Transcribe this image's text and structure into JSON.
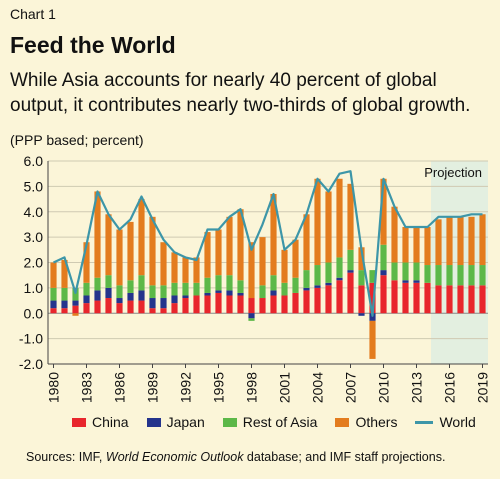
{
  "header": {
    "chart_label": "Chart 1",
    "title": "Feed the World",
    "subtitle": "While Asia accounts for nearly 40 percent of global output, it contributes nearly two-thirds of global growth.",
    "unit_note": "(PPP based; percent)"
  },
  "source": {
    "prefix": "Sources: IMF, ",
    "italic": "World Economic Outlook",
    "suffix": " database; and IMF staff projections."
  },
  "colors": {
    "China": "#e8262c",
    "Japan": "#24348c",
    "Rest of Asia": "#5cb848",
    "Others": "#e37c1e",
    "World": "#3d96a8",
    "projection_band": "#e3efe0"
  },
  "chart_data": {
    "type": "bar",
    "stacked": true,
    "categories": [
      1980,
      1981,
      1982,
      1983,
      1984,
      1985,
      1986,
      1987,
      1988,
      1989,
      1990,
      1991,
      1992,
      1993,
      1994,
      1995,
      1996,
      1997,
      1998,
      1999,
      2000,
      2001,
      2002,
      2003,
      2004,
      2005,
      2006,
      2007,
      2008,
      2009,
      2010,
      2011,
      2012,
      2013,
      2014,
      2015,
      2016,
      2017,
      2018,
      2019
    ],
    "tick_labels": [
      "1980",
      "1983",
      "1986",
      "1989",
      "1992",
      "1995",
      "1998",
      "2001",
      "2004",
      "2007",
      "2010",
      "2013",
      "2016",
      "2019"
    ],
    "ylim": [
      -2.0,
      6.0
    ],
    "yticks": [
      "-2.0",
      "-1.0",
      "0.0",
      "1.0",
      "2.0",
      "3.0",
      "4.0",
      "5.0",
      "6.0"
    ],
    "grid": true,
    "projection_label": "Projection",
    "projection_start": 2015,
    "series": [
      {
        "name": "China",
        "values": [
          0.2,
          0.2,
          0.3,
          0.4,
          0.5,
          0.6,
          0.4,
          0.5,
          0.5,
          0.2,
          0.2,
          0.4,
          0.6,
          0.7,
          0.7,
          0.8,
          0.7,
          0.7,
          0.6,
          0.6,
          0.7,
          0.7,
          0.8,
          0.9,
          1.0,
          1.1,
          1.3,
          1.6,
          1.1,
          1.2,
          1.5,
          1.3,
          1.2,
          1.2,
          1.2,
          1.1,
          1.1,
          1.1,
          1.1,
          1.1
        ]
      },
      {
        "name": "Japan",
        "values": [
          0.3,
          0.3,
          0.2,
          0.3,
          0.4,
          0.4,
          0.2,
          0.3,
          0.4,
          0.4,
          0.4,
          0.3,
          0.1,
          0.0,
          0.1,
          0.1,
          0.2,
          0.1,
          -0.2,
          0.0,
          0.2,
          0.0,
          0.0,
          0.1,
          0.1,
          0.1,
          0.1,
          0.1,
          -0.1,
          -0.3,
          0.2,
          0.0,
          0.1,
          0.1,
          0.0,
          0.0,
          0.0,
          0.0,
          0.0,
          0.0
        ]
      },
      {
        "name": "Rest of Asia",
        "values": [
          0.5,
          0.5,
          0.5,
          0.5,
          0.5,
          0.5,
          0.5,
          0.5,
          0.6,
          0.5,
          0.5,
          0.5,
          0.5,
          0.5,
          0.6,
          0.6,
          0.6,
          0.5,
          -0.1,
          0.5,
          0.6,
          0.5,
          0.6,
          0.7,
          0.8,
          0.8,
          0.8,
          0.8,
          0.6,
          0.5,
          1.0,
          0.7,
          0.7,
          0.7,
          0.7,
          0.8,
          0.8,
          0.8,
          0.8,
          0.8
        ]
      },
      {
        "name": "Others",
        "values": [
          1.0,
          1.1,
          -0.1,
          1.6,
          3.4,
          2.4,
          2.2,
          2.3,
          3.0,
          2.7,
          1.7,
          1.2,
          1.0,
          1.0,
          1.8,
          1.8,
          2.3,
          2.8,
          2.2,
          1.9,
          3.2,
          1.3,
          1.5,
          2.2,
          3.4,
          2.8,
          3.1,
          2.6,
          0.9,
          -1.5,
          2.6,
          2.2,
          1.4,
          1.4,
          1.5,
          1.8,
          1.9,
          1.9,
          1.9,
          2.0
        ]
      },
      {
        "name": "World",
        "type": "line",
        "values": [
          2.0,
          2.2,
          0.8,
          2.7,
          4.8,
          3.9,
          3.3,
          3.7,
          4.6,
          3.7,
          2.9,
          2.4,
          2.2,
          2.1,
          3.3,
          3.3,
          3.8,
          4.1,
          2.5,
          3.5,
          4.7,
          2.5,
          2.9,
          3.9,
          5.3,
          4.8,
          5.5,
          5.6,
          2.5,
          -0.1,
          5.3,
          4.2,
          3.4,
          3.4,
          3.4,
          3.8,
          3.8,
          3.8,
          3.9,
          3.9
        ]
      }
    ]
  }
}
